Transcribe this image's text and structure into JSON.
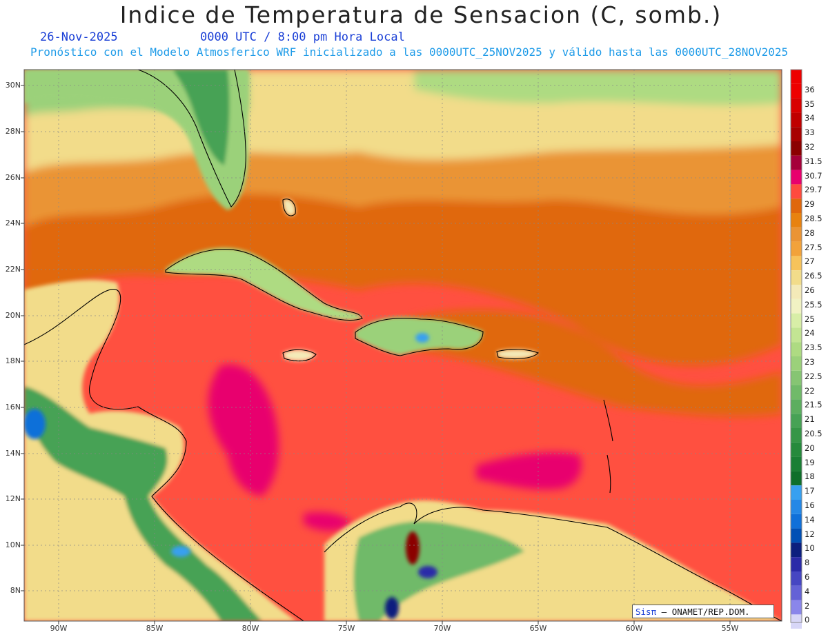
{
  "header": {
    "title": "Indice de Temperatura de Sensacion (C, somb.)",
    "date": "26-Nov-2025",
    "time": "0000 UTC / 8:00 pm Hora Local",
    "subtitle": "Pronóstico con el Modelo Atmosferico WRF inicializado a las 0000UTC_25NOV2025 y válido hasta las  0000UTC_28NOV2025"
  },
  "axes": {
    "lat_labels": [
      "30N",
      "28N",
      "26N",
      "24N",
      "22N",
      "20N",
      "18N",
      "16N",
      "14N",
      "12N",
      "10N",
      "8N"
    ],
    "lon_labels": [
      "90W",
      "85W",
      "80W",
      "75W",
      "70W",
      "65W",
      "60W",
      "55W"
    ]
  },
  "colorbar": {
    "levels": [
      "36",
      "35",
      "34",
      "33",
      "32",
      "31.5",
      "30.7",
      "29.7",
      "29",
      "28.5",
      "28",
      "27.5",
      "27",
      "26.5",
      "26",
      "25.5",
      "25",
      "24",
      "23.5",
      "23",
      "22.5",
      "22",
      "21.5",
      "21",
      "20.5",
      "20",
      "19",
      "18",
      "17",
      "16",
      "14",
      "12",
      "10",
      "8",
      "6",
      "4",
      "2",
      "0"
    ],
    "colors": [
      "#ee0000",
      "#d80000",
      "#c00000",
      "#a80000",
      "#8b0000",
      "#a5003a",
      "#e8006e",
      "#ff4a3e",
      "#e0670c",
      "#e8820f",
      "#ea9434",
      "#f2a23a",
      "#f7c35b",
      "#f2dc8a",
      "#f4eab8",
      "#f1f2c3",
      "#d8eea7",
      "#c3e593",
      "#aedb82",
      "#9bd17a",
      "#86c573",
      "#70ba69",
      "#5cae5f",
      "#47a255",
      "#369647",
      "#268a3c",
      "#1a7f34",
      "#0f6f2a",
      "#37a0f0",
      "#2588e6",
      "#1070d9",
      "#0050b5",
      "#0c1f7e",
      "#2a2aa8",
      "#4646c2",
      "#6462d6",
      "#8a86ea",
      "#d7d6f7"
    ],
    "bottom_color": "#ffffff"
  },
  "credit": {
    "brand": "Sisπ",
    "text": "– ONAMET/REP.DOM."
  },
  "map": {
    "projection": "cylindrical",
    "lon_range": [
      -92,
      -51
    ],
    "lat_range": [
      6.7,
      30.7
    ],
    "ocean_background": "#ff5040",
    "coast_color": "#000000"
  }
}
